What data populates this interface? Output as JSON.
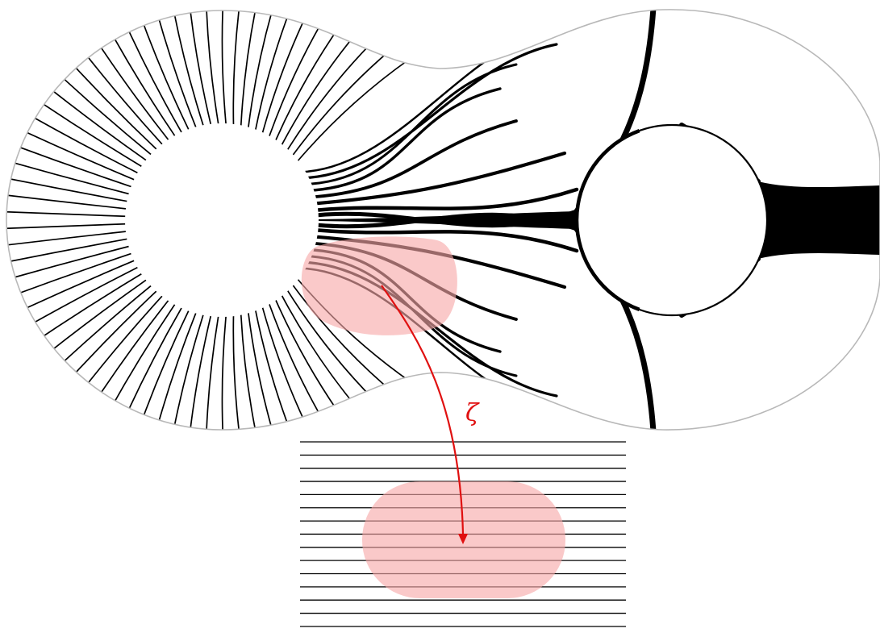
{
  "figure": {
    "map_label": "ζ"
  },
  "colors": {
    "line": "#000000",
    "outline": "#b8b8b8",
    "highlight": "#f7a8a8",
    "arrow": "#e01010",
    "background": "#ffffff"
  },
  "icons": {
    "arrowhead": "triangle-arrowhead-icon"
  }
}
